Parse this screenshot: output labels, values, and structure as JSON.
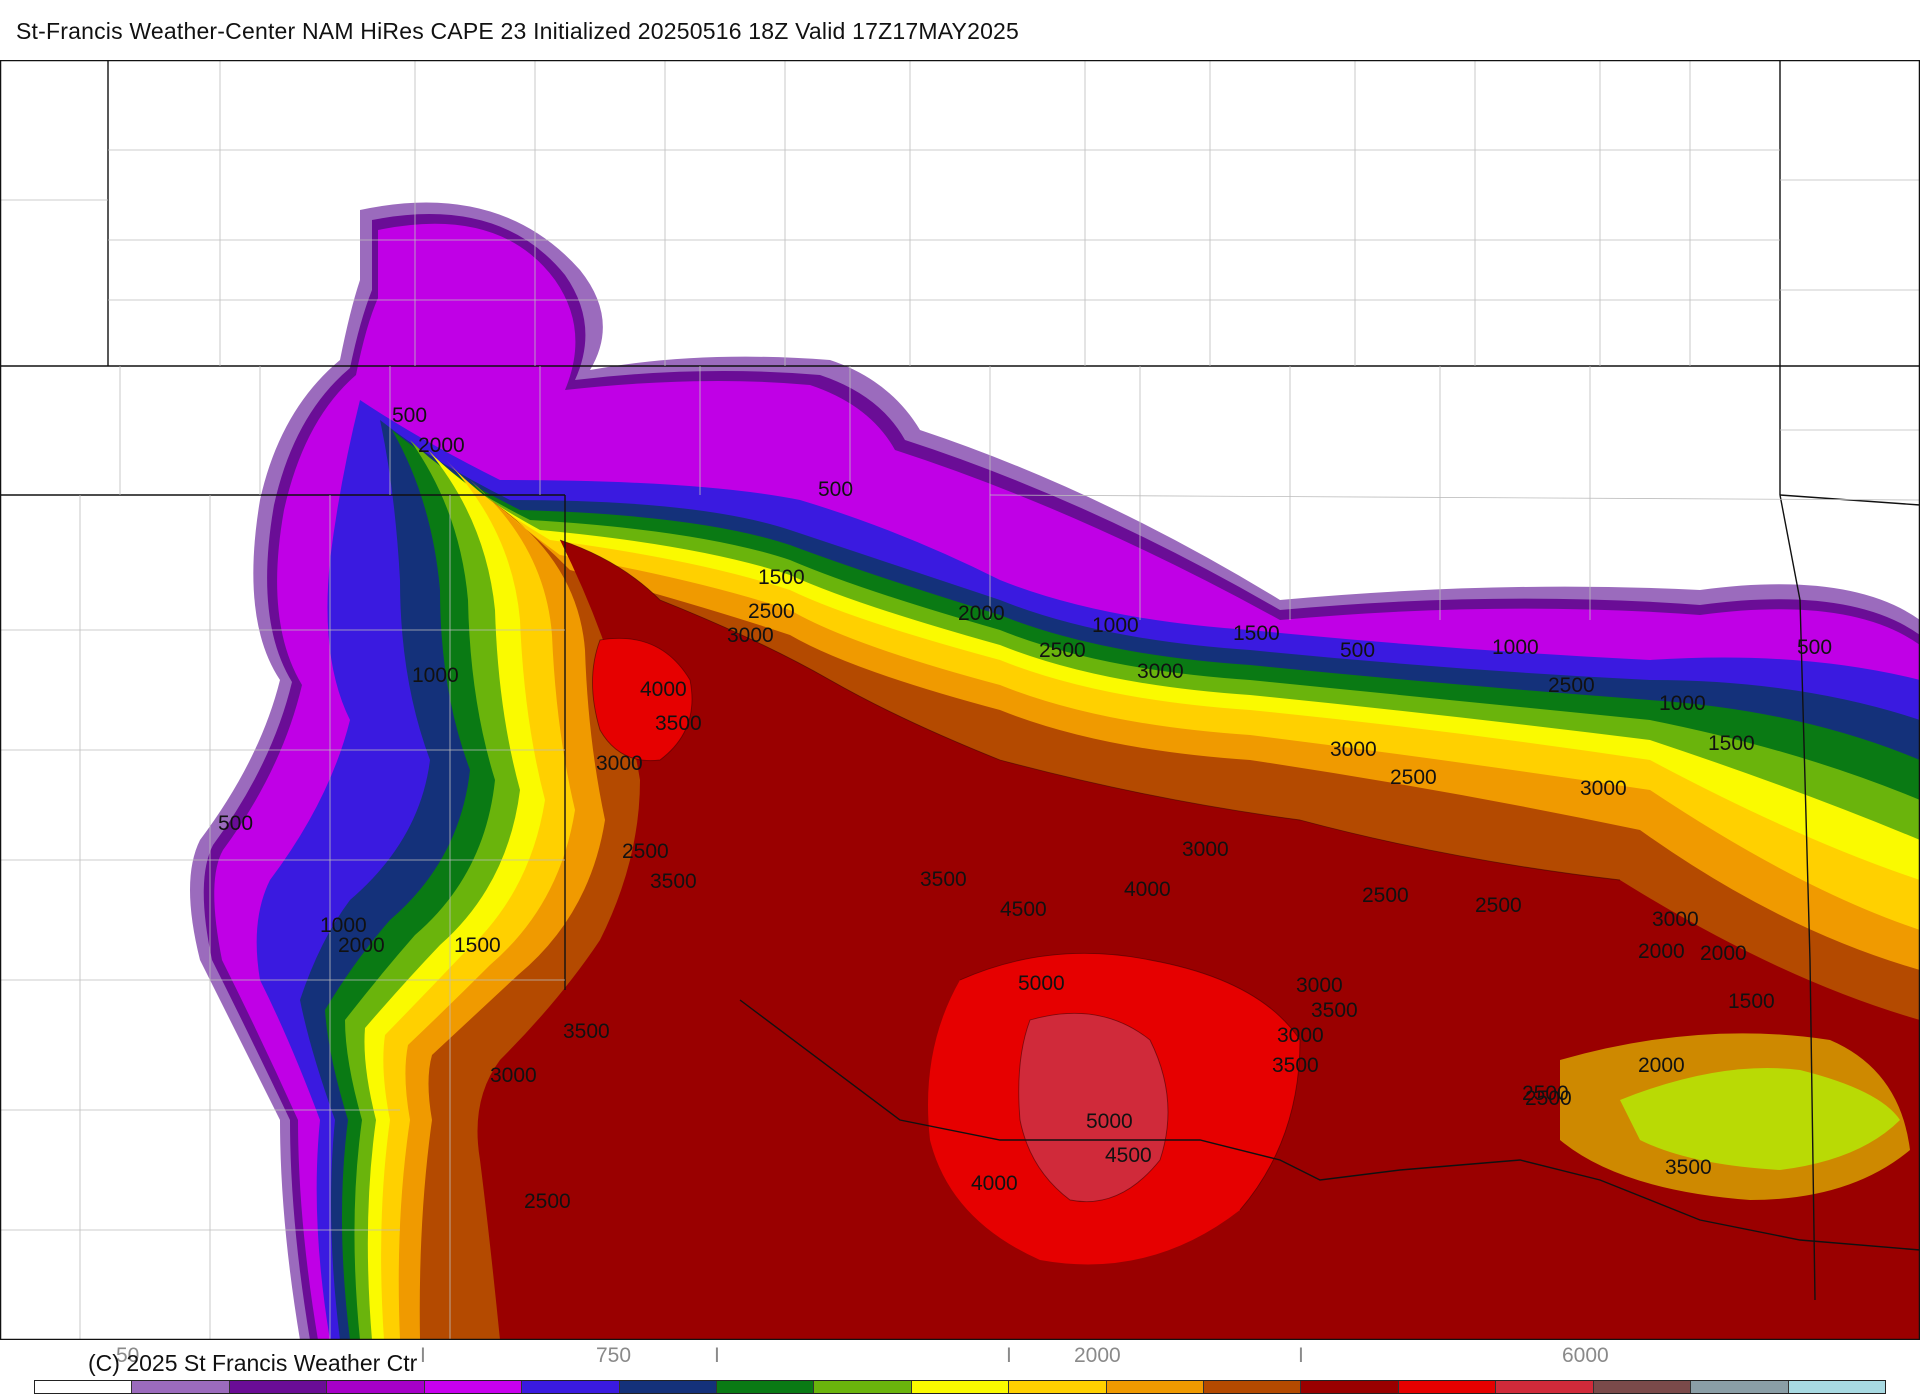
{
  "title": "St-Francis Weather-Center NAM HiRes CAPE  23 Initialized 20250516 18Z Valid 17Z17MAY2025",
  "copyright": "(C) 2025 St Francis Weather Ctr",
  "colorbar": {
    "tick_labels": [
      "50",
      "I",
      "750",
      "I",
      "I",
      "2000",
      "I",
      "6000"
    ],
    "colors": [
      "#ffffff",
      "#9b6bbd",
      "#6a0d96",
      "#a600c8",
      "#c800ee",
      "#3a1ae0",
      "#14317a",
      "#0a7a14",
      "#6ab40c",
      "#fafa00",
      "#ffd000",
      "#f09a00",
      "#b44a00",
      "#9a0000",
      "#e60000",
      "#d02a3a",
      "#7a4a4a",
      "#8a9ea6",
      "#a8dae2"
    ]
  },
  "contour_labels": [
    "500",
    "2000",
    "1000",
    "1500",
    "2500",
    "3000",
    "4000",
    "3500",
    "500",
    "2000",
    "1000",
    "2500",
    "3000",
    "1500",
    "500",
    "2500",
    "1000",
    "3000",
    "2500",
    "1500",
    "3000",
    "500",
    "3000",
    "2500",
    "3500",
    "4000",
    "4500",
    "5000",
    "3500",
    "3000",
    "2500",
    "2500",
    "3000",
    "2000",
    "1500",
    "2000",
    "2500",
    "3500",
    "3000",
    "2500",
    "5000",
    "4500",
    "4000",
    "1000",
    "2000",
    "1500",
    "500",
    "1000",
    "2000",
    "3500",
    "3000",
    "2500",
    "3500",
    "3000",
    "3500"
  ]
}
